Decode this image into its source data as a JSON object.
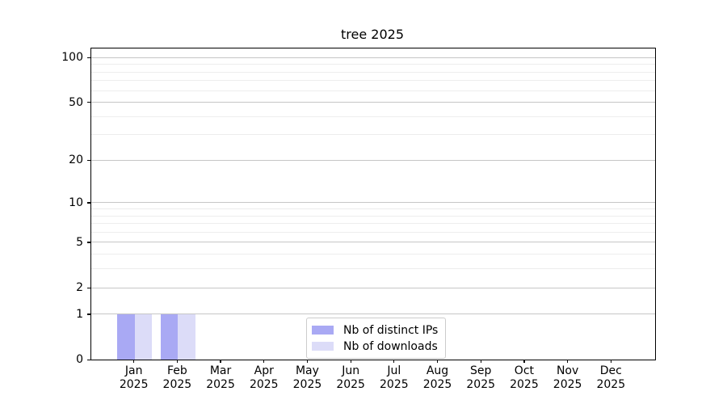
{
  "chart_data": {
    "type": "bar",
    "title": "tree 2025",
    "categories": [
      "Jan",
      "Feb",
      "Mar",
      "Apr",
      "May",
      "Jun",
      "Jul",
      "Aug",
      "Sep",
      "Oct",
      "Nov",
      "Dec"
    ],
    "year_label": "2025",
    "series": [
      {
        "name": "Nb of distinct IPs",
        "color": "#a9a9f4",
        "values": [
          1,
          1,
          0,
          0,
          0,
          0,
          0,
          0,
          0,
          0,
          0,
          0
        ]
      },
      {
        "name": "Nb of downloads",
        "color": "#dcdcf8",
        "values": [
          1,
          1,
          0,
          0,
          0,
          0,
          0,
          0,
          0,
          0,
          0,
          0
        ]
      }
    ],
    "xlabel": "",
    "ylabel": "",
    "yscale": "log1p",
    "ylim": [
      0,
      115
    ],
    "yticks": [
      0,
      1,
      2,
      5,
      10,
      20,
      50,
      100
    ],
    "minor_yticks": [
      3,
      4,
      6,
      7,
      8,
      9,
      30,
      40,
      60,
      70,
      80,
      90
    ],
    "grid": true,
    "legend_position": "lower center",
    "colors": {
      "major_grid": "#c6c6c6",
      "minor_grid": "#ededed",
      "spine": "#000000",
      "legend_border": "#cccccc",
      "legend_bg": "#ffffff",
      "text": "#000000"
    }
  }
}
